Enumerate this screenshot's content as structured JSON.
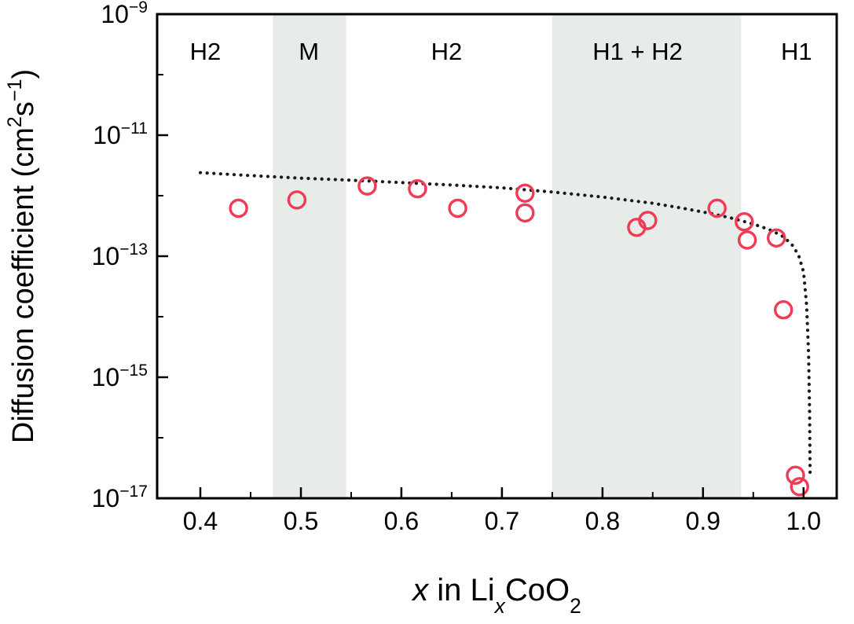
{
  "figure": {
    "background": "#ffffff"
  },
  "chart_data": {
    "type": "scatter",
    "title": "",
    "xlabel": "x in LixCoO2",
    "ylabel": "Diffusion coefficient (cm2s-1)",
    "xlabel_parts": [
      {
        "t": "x",
        "italic": true
      },
      {
        "t": " in Li"
      },
      {
        "t": "x",
        "sub": true,
        "italic": true
      },
      {
        "t": "CoO"
      },
      {
        "t": "2",
        "sub": true
      }
    ],
    "ylabel_parts": [
      {
        "t": "Diffusion coefficient (cm"
      },
      {
        "t": "2",
        "sup": true
      },
      {
        "t": "s"
      },
      {
        "t": "−1",
        "sup": true
      },
      {
        "t": ")"
      }
    ],
    "x_axis": {
      "min": 0.357,
      "max": 1.033,
      "major_ticks": [
        0.4,
        0.5,
        0.6,
        0.7,
        0.8,
        0.9,
        1.0
      ],
      "minor_ticks": [
        0.45,
        0.55,
        0.65,
        0.75,
        0.85,
        0.95
      ],
      "tick_label_format": "one-decimal"
    },
    "y_axis": {
      "scale": "log",
      "min_exp": -17,
      "max_exp": -9,
      "labeled_exps": [
        -9,
        -11,
        -13,
        -15,
        -17
      ]
    },
    "regions": [
      {
        "x0": 0.472,
        "x1": 0.545
      },
      {
        "x0": 0.75,
        "x1": 0.938
      }
    ],
    "phase_labels": [
      {
        "text": "H2",
        "x": 0.405
      },
      {
        "text": "M",
        "x": 0.508
      },
      {
        "text": "H2",
        "x": 0.645
      },
      {
        "text": "H1 + H2",
        "x": 0.835
      },
      {
        "text": "H1",
        "x": 0.993
      }
    ],
    "scatter": {
      "name": "experimental-diffusion-coefficient",
      "marker": "open-circle",
      "color": "#f23a55",
      "points": [
        [
          0.438,
          6.2e-13
        ],
        [
          0.496,
          8.5e-13
        ],
        [
          0.566,
          1.45e-12
        ],
        [
          0.616,
          1.3e-12
        ],
        [
          0.656,
          6.2e-13
        ],
        [
          0.723,
          1.1e-12
        ],
        [
          0.723,
          5.2e-13
        ],
        [
          0.834,
          3e-13
        ],
        [
          0.845,
          3.9e-13
        ],
        [
          0.914,
          6.2e-13
        ],
        [
          0.941,
          3.7e-13
        ],
        [
          0.944,
          1.85e-13
        ],
        [
          0.973,
          2e-13
        ],
        [
          0.98,
          1.3e-14
        ],
        [
          0.992,
          2.4e-17
        ],
        [
          0.996,
          1.55e-17
        ]
      ]
    },
    "line": {
      "name": "model-curve",
      "style": "dotted",
      "color": "#1a1a1a",
      "points": [
        [
          0.4,
          2.4e-12
        ],
        [
          0.45,
          2.15e-12
        ],
        [
          0.5,
          1.95e-12
        ],
        [
          0.55,
          1.8e-12
        ],
        [
          0.6,
          1.65e-12
        ],
        [
          0.65,
          1.5e-12
        ],
        [
          0.7,
          1.35e-12
        ],
        [
          0.75,
          1.15e-12
        ],
        [
          0.8,
          9.5e-13
        ],
        [
          0.85,
          7.5e-13
        ],
        [
          0.88,
          6.2e-13
        ],
        [
          0.91,
          5e-13
        ],
        [
          0.93,
          4.2e-13
        ],
        [
          0.95,
          3.4e-13
        ],
        [
          0.965,
          2.8e-13
        ],
        [
          0.978,
          2.2e-13
        ],
        [
          0.988,
          1.6e-13
        ],
        [
          0.995,
          1.05e-13
        ],
        [
          1.0,
          5.5e-14
        ],
        [
          1.003,
          1.6e-14
        ],
        [
          1.005,
          2.5e-15
        ],
        [
          1.006,
          2.5e-16
        ],
        [
          1.0065,
          2.5e-17
        ]
      ]
    },
    "colors": {
      "marker": "#f23a55",
      "line": "#1a1a1a",
      "region": "#e8ece9",
      "axis": "#000000",
      "background": "#ffffff"
    },
    "legend": "none",
    "grid": false
  }
}
